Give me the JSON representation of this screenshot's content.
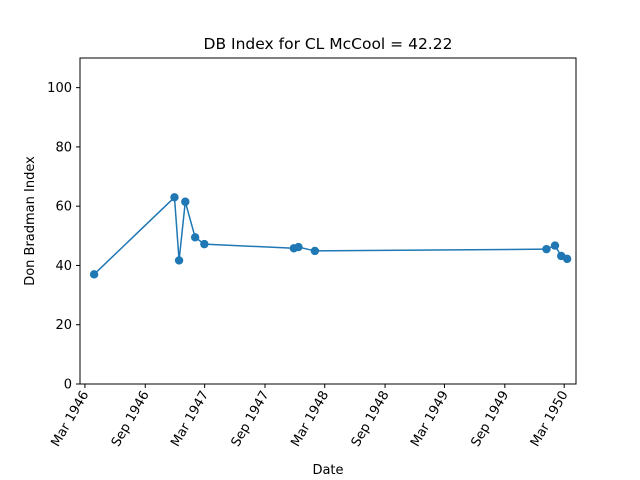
{
  "chart_data": {
    "type": "line",
    "title": "DB Index for CL McCool = 42.22",
    "xlabel": "Date",
    "ylabel": "Don Bradman Index",
    "ylim": [
      0,
      110
    ],
    "xlim": [
      "1946-02-14",
      "1950-04-06"
    ],
    "yticks": [
      0,
      20,
      40,
      60,
      80,
      100
    ],
    "xticks": [
      {
        "date": "1946-03-01",
        "label": "Mar 1946"
      },
      {
        "date": "1946-09-01",
        "label": "Sep 1946"
      },
      {
        "date": "1947-03-01",
        "label": "Mar 1947"
      },
      {
        "date": "1947-09-01",
        "label": "Sep 1947"
      },
      {
        "date": "1948-03-01",
        "label": "Mar 1948"
      },
      {
        "date": "1948-09-01",
        "label": "Sep 1948"
      },
      {
        "date": "1949-03-01",
        "label": "Mar 1949"
      },
      {
        "date": "1949-09-01",
        "label": "Sep 1949"
      },
      {
        "date": "1950-03-01",
        "label": "Mar 1950"
      }
    ],
    "grid": false,
    "legend": "none",
    "series": [
      {
        "color": "#1f77b4",
        "marker": "circle",
        "points": [
          {
            "x": "1946-03-29",
            "y": 37.0
          },
          {
            "x": "1946-11-29",
            "y": 63.0
          },
          {
            "x": "1946-12-13",
            "y": 41.7
          },
          {
            "x": "1947-01-01",
            "y": 61.5
          },
          {
            "x": "1947-01-31",
            "y": 49.5
          },
          {
            "x": "1947-02-28",
            "y": 47.2
          },
          {
            "x": "1947-11-28",
            "y": 45.8
          },
          {
            "x": "1947-12-12",
            "y": 46.2
          },
          {
            "x": "1948-01-31",
            "y": 44.9
          },
          {
            "x": "1950-01-06",
            "y": 45.5
          },
          {
            "x": "1950-02-01",
            "y": 46.7
          },
          {
            "x": "1950-02-20",
            "y": 43.2
          },
          {
            "x": "1950-03-10",
            "y": 42.22
          }
        ]
      }
    ]
  }
}
